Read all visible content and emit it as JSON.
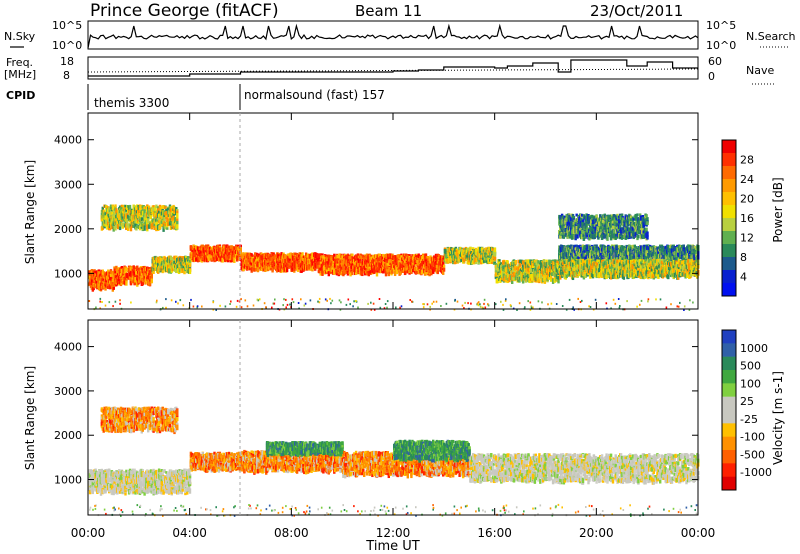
{
  "header": {
    "station": "Prince George (fitACF)",
    "beam": "Beam 11",
    "date": "23/Oct/2011"
  },
  "top_panels": {
    "nsky_label": "N.Sky",
    "nsearch_label": "N.Search",
    "nave_label": "Nave",
    "freq_label_1": "Freq.",
    "freq_label_2": "[MHz]",
    "cpid_label": "CPID",
    "noise_ticks": [
      "10^5",
      "10^0"
    ],
    "freq_ticks": [
      "18",
      "8"
    ],
    "nave_ticks": [
      "60",
      "0"
    ],
    "cpid_segments": [
      {
        "label": "themis 3300",
        "start_hour": 0
      },
      {
        "label": "normalsound (fast) 157",
        "start_hour": 6
      }
    ]
  },
  "x_axis": {
    "label": "Time UT",
    "ticks": [
      "00:00",
      "04:00",
      "08:00",
      "12:00",
      "16:00",
      "20:00",
      "00:00"
    ]
  },
  "chart_data": [
    {
      "type": "heatmap",
      "name": "power",
      "ylabel": "Slant Range [km]",
      "yticks": [
        1000,
        2000,
        3000,
        4000
      ],
      "ylim": [
        200,
        4600
      ],
      "xlim_hours": [
        0,
        24
      ],
      "colorbar": {
        "label": "Power [dB]",
        "ticks": [
          "28",
          "24",
          "20",
          "16",
          "12",
          "8",
          "4"
        ],
        "colors": [
          "#f00000",
          "#ff3000",
          "#ff6a00",
          "#ff9a00",
          "#ffc000",
          "#f0e000",
          "#b8d040",
          "#60b050",
          "#2a8a5a",
          "#1c5a8c",
          "#0820d0",
          "#0010f0"
        ]
      },
      "bands": [
        {
          "t0": 0.0,
          "t1": 1.0,
          "center": 900,
          "half": 200,
          "level": "high"
        },
        {
          "t0": 1.0,
          "t1": 2.5,
          "center": 1000,
          "half": 180,
          "level": "high"
        },
        {
          "t0": 2.5,
          "t1": 4.0,
          "center": 1250,
          "half": 150,
          "level": "mid"
        },
        {
          "t0": 4.0,
          "t1": 6.0,
          "center": 1500,
          "half": 150,
          "level": "high"
        },
        {
          "t0": 6.0,
          "t1": 9.0,
          "center": 1300,
          "half": 180,
          "level": "high"
        },
        {
          "t0": 9.0,
          "t1": 14.0,
          "center": 1250,
          "half": 200,
          "level": "high"
        },
        {
          "t0": 14.0,
          "t1": 16.0,
          "center": 1450,
          "half": 150,
          "level": "mid"
        },
        {
          "t0": 16.0,
          "t1": 18.5,
          "center": 1100,
          "half": 220,
          "level": "mid"
        },
        {
          "t0": 18.5,
          "t1": 24.0,
          "center": 1500,
          "half": 150,
          "level": "low"
        },
        {
          "t0": 18.5,
          "t1": 24.0,
          "center": 1150,
          "half": 180,
          "level": "mid"
        },
        {
          "t0": 0.5,
          "t1": 3.5,
          "center": 2300,
          "half": 250,
          "level": "mid"
        },
        {
          "t0": 18.5,
          "t1": 22.0,
          "center": 2100,
          "half": 250,
          "level": "low"
        }
      ]
    },
    {
      "type": "heatmap",
      "name": "velocity",
      "ylabel": "Slant Range [km]",
      "yticks": [
        1000,
        2000,
        3000,
        4000
      ],
      "ylim": [
        200,
        4600
      ],
      "xlim_hours": [
        0,
        24
      ],
      "colorbar": {
        "label": "Velocity [m s-1]",
        "ticks": [
          "1000",
          "500",
          "100",
          "25",
          "-25",
          "-100",
          "-500",
          "-1000"
        ],
        "colors": [
          "#2040c0",
          "#3060a8",
          "#2a8a5a",
          "#40a840",
          "#80d040",
          "#c8c8c0",
          "#c8c8c0",
          "#ffc000",
          "#ff9000",
          "#ff6000",
          "#ff2000",
          "#e00000"
        ]
      },
      "bands": [
        {
          "t0": 0.0,
          "t1": 4.0,
          "center": 1000,
          "half": 250,
          "level": "gray"
        },
        {
          "t0": 4.0,
          "t1": 6.0,
          "center": 1450,
          "half": 180,
          "level": "orange"
        },
        {
          "t0": 6.0,
          "t1": 10.0,
          "center": 1450,
          "half": 220,
          "level": "orange"
        },
        {
          "t0": 7.0,
          "t1": 10.0,
          "center": 1750,
          "half": 120,
          "level": "green"
        },
        {
          "t0": 10.0,
          "t1": 15.0,
          "center": 1400,
          "half": 250,
          "level": "orange"
        },
        {
          "t0": 12.0,
          "t1": 15.0,
          "center": 1700,
          "half": 200,
          "level": "green"
        },
        {
          "t0": 15.0,
          "t1": 24.0,
          "center": 1300,
          "half": 300,
          "level": "gray"
        },
        {
          "t0": 0.5,
          "t1": 3.5,
          "center": 2400,
          "half": 250,
          "level": "orange"
        }
      ]
    }
  ]
}
